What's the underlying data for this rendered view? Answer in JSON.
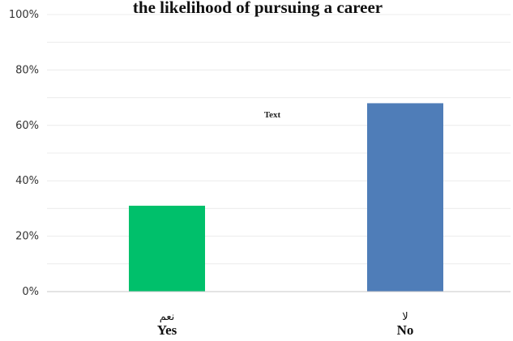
{
  "chart_data": {
    "type": "bar",
    "title": "the likelihood of pursuing a career",
    "categories": [
      {
        "arabic": "نعم",
        "english": "Yes"
      },
      {
        "arabic": "لا",
        "english": "No"
      }
    ],
    "values": [
      31,
      68
    ],
    "bar_colors": [
      "#00c06b",
      "#4f7db8"
    ],
    "ylim": [
      0,
      100
    ],
    "yticks": [
      "0%",
      "20%",
      "40%",
      "60%",
      "80%",
      "100%"
    ],
    "ytick_values": [
      0,
      20,
      40,
      60,
      80,
      100
    ],
    "grid": true,
    "annotation": "Text"
  }
}
